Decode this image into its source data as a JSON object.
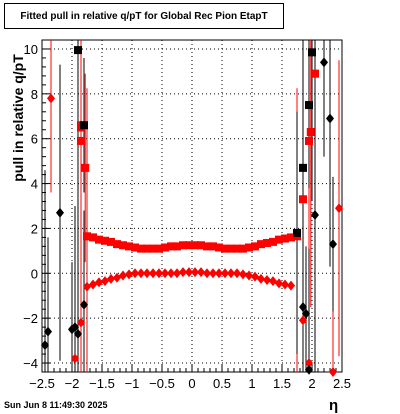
{
  "title": "Fitted pull in relative q/pT for Global Rec Pion EtapT",
  "timestamp": "Sun Jun  8 11:49:30 2025",
  "colors": {
    "red_series": "#ff0000",
    "black_series": "#000000",
    "grid": "#000000"
  },
  "chart_data": {
    "type": "scatter",
    "title": "Fitted pull in relative q/pT for Global Rec Pion EtapT",
    "xlabel": "η",
    "ylabel": "pull in relative q/pT",
    "xlim": [
      -2.5,
      2.5
    ],
    "ylim": [
      -4.4,
      10.4
    ],
    "grid": true,
    "legend": "none",
    "x_ticks": [
      "−2.5",
      "−2",
      "−1.5",
      "−1",
      "−0.5",
      "0",
      "0.5",
      "1",
      "1.5",
      "2",
      "2.5"
    ],
    "y_ticks": [
      "−4",
      "−2",
      "0",
      "2",
      "4",
      "6",
      "8",
      "10"
    ],
    "series": [
      {
        "marker": "square",
        "color": "#ff0000",
        "points": [
          {
            "x": -1.85,
            "y": 6.6
          },
          {
            "x": -1.85,
            "y": 5.9
          },
          {
            "x": -1.85,
            "y": 6.5
          },
          {
            "x": -1.78,
            "y": 4.7
          },
          {
            "x": -1.75,
            "y": 1.65
          },
          {
            "x": -1.65,
            "y": 1.6
          },
          {
            "x": -1.55,
            "y": 1.5
          },
          {
            "x": -1.45,
            "y": 1.45
          },
          {
            "x": -1.35,
            "y": 1.4
          },
          {
            "x": -1.25,
            "y": 1.3
          },
          {
            "x": -1.15,
            "y": 1.25
          },
          {
            "x": -1.05,
            "y": 1.2
          },
          {
            "x": -0.95,
            "y": 1.15
          },
          {
            "x": -0.85,
            "y": 1.1
          },
          {
            "x": -0.75,
            "y": 1.1
          },
          {
            "x": -0.65,
            "y": 1.1
          },
          {
            "x": -0.55,
            "y": 1.1
          },
          {
            "x": -0.45,
            "y": 1.15
          },
          {
            "x": -0.35,
            "y": 1.2
          },
          {
            "x": -0.25,
            "y": 1.2
          },
          {
            "x": -0.15,
            "y": 1.25
          },
          {
            "x": -0.05,
            "y": 1.25
          },
          {
            "x": 0.05,
            "y": 1.25
          },
          {
            "x": 0.15,
            "y": 1.25
          },
          {
            "x": 0.25,
            "y": 1.2
          },
          {
            "x": 0.35,
            "y": 1.2
          },
          {
            "x": 0.45,
            "y": 1.15
          },
          {
            "x": 0.55,
            "y": 1.1
          },
          {
            "x": 0.65,
            "y": 1.1
          },
          {
            "x": 0.75,
            "y": 1.1
          },
          {
            "x": 0.85,
            "y": 1.1
          },
          {
            "x": 0.95,
            "y": 1.15
          },
          {
            "x": 1.05,
            "y": 1.2
          },
          {
            "x": 1.15,
            "y": 1.3
          },
          {
            "x": 1.25,
            "y": 1.35
          },
          {
            "x": 1.35,
            "y": 1.4
          },
          {
            "x": 1.45,
            "y": 1.5
          },
          {
            "x": 1.55,
            "y": 1.55
          },
          {
            "x": 1.65,
            "y": 1.6
          },
          {
            "x": 1.75,
            "y": 1.65
          },
          {
            "x": 1.85,
            "y": 3.3
          },
          {
            "x": 1.95,
            "y": 5.9
          },
          {
            "x": 1.98,
            "y": 6.3
          },
          {
            "x": 2.05,
            "y": 8.9
          }
        ]
      },
      {
        "marker": "square",
        "color": "#000000",
        "points": [
          {
            "x": -1.9,
            "y": 9.95
          },
          {
            "x": -1.8,
            "y": 6.6
          },
          {
            "x": 1.75,
            "y": 1.8
          },
          {
            "x": 1.85,
            "y": 4.7
          },
          {
            "x": 1.95,
            "y": 7.5
          },
          {
            "x": 2.0,
            "y": 9.85
          }
        ]
      },
      {
        "marker": "circle",
        "color": "#ff0000",
        "points": [
          {
            "x": -2.35,
            "y": 7.8
          },
          {
            "x": -1.95,
            "y": -3.8
          },
          {
            "x": -1.85,
            "y": -2.2
          },
          {
            "x": -1.75,
            "y": -0.6
          },
          {
            "x": -1.65,
            "y": -0.5
          },
          {
            "x": -1.55,
            "y": -0.4
          },
          {
            "x": -1.45,
            "y": -0.35
          },
          {
            "x": -1.35,
            "y": -0.25
          },
          {
            "x": -1.25,
            "y": -0.2
          },
          {
            "x": -1.15,
            "y": -0.1
          },
          {
            "x": -1.05,
            "y": -0.05
          },
          {
            "x": -0.95,
            "y": 0.0
          },
          {
            "x": -0.85,
            "y": 0.0
          },
          {
            "x": -0.75,
            "y": 0.0
          },
          {
            "x": -0.65,
            "y": 0.0
          },
          {
            "x": -0.55,
            "y": 0.0
          },
          {
            "x": -0.45,
            "y": 0.0
          },
          {
            "x": -0.35,
            "y": 0.0
          },
          {
            "x": -0.25,
            "y": 0.0
          },
          {
            "x": -0.15,
            "y": 0.05
          },
          {
            "x": -0.05,
            "y": 0.05
          },
          {
            "x": 0.05,
            "y": 0.05
          },
          {
            "x": 0.15,
            "y": 0.05
          },
          {
            "x": 0.25,
            "y": 0.0
          },
          {
            "x": 0.35,
            "y": 0.0
          },
          {
            "x": 0.45,
            "y": 0.0
          },
          {
            "x": 0.55,
            "y": 0.0
          },
          {
            "x": 0.65,
            "y": 0.0
          },
          {
            "x": 0.75,
            "y": 0.0
          },
          {
            "x": 0.85,
            "y": -0.05
          },
          {
            "x": 0.95,
            "y": -0.1
          },
          {
            "x": 1.05,
            "y": -0.15
          },
          {
            "x": 1.15,
            "y": -0.25
          },
          {
            "x": 1.25,
            "y": -0.3
          },
          {
            "x": 1.35,
            "y": -0.35
          },
          {
            "x": 1.45,
            "y": -0.45
          },
          {
            "x": 1.55,
            "y": -0.5
          },
          {
            "x": 1.65,
            "y": -0.55
          },
          {
            "x": 1.85,
            "y": -2.1
          },
          {
            "x": 1.95,
            "y": -4.0
          },
          {
            "x": 2.35,
            "y": -4.4
          },
          {
            "x": 2.45,
            "y": 2.9
          }
        ]
      },
      {
        "marker": "circle",
        "color": "#000000",
        "points": [
          {
            "x": -2.45,
            "y": -3.2
          },
          {
            "x": -2.4,
            "y": -2.6
          },
          {
            "x": -2.2,
            "y": 2.7
          },
          {
            "x": -2.0,
            "y": -2.5
          },
          {
            "x": -1.95,
            "y": -2.4
          },
          {
            "x": -1.9,
            "y": -2.7
          },
          {
            "x": -1.8,
            "y": -1.4
          },
          {
            "x": 1.85,
            "y": -1.5
          },
          {
            "x": 1.9,
            "y": -1.8
          },
          {
            "x": 1.95,
            "y": -4.3
          },
          {
            "x": 2.05,
            "y": 2.6
          },
          {
            "x": 2.2,
            "y": 9.4
          },
          {
            "x": 2.3,
            "y": 6.9
          },
          {
            "x": 2.35,
            "y": 1.3
          }
        ]
      }
    ]
  }
}
